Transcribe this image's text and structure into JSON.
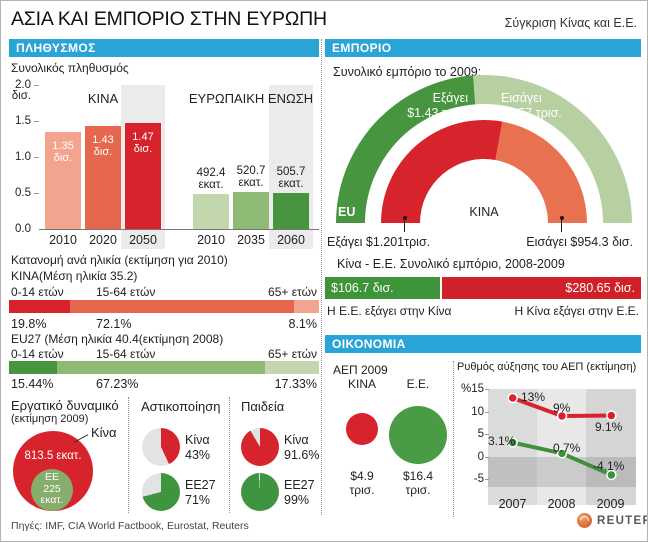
{
  "page": {
    "title": "ΑΣΙΑ ΚΑΙ ΕΜΠΟΡΙΟ ΣΤΗΝ ΕΥΡΩΠΗ",
    "subtitle": "Σύγκριση Κίνας και Ε.Ε.",
    "sources": "Πηγές: IMF, CIA World Factbook, Eurostat, Reuters",
    "brand": "REUTERS"
  },
  "sections": {
    "population": "ΠΛΗΘΥΣΜΟΣ",
    "trade": "ΕΜΠΟΡΙΟ",
    "economy": "ΟΙΚΟΝΟΜΙΑ"
  },
  "colors": {
    "header_blue": "#2aa3d6",
    "china_red": "#d7232b",
    "eu_green": "#47953e"
  },
  "chart_data": [
    {
      "id": "total-population",
      "type": "bar",
      "title": "Συνολικός πληθυσμός",
      "ylabel": "δισ.",
      "ylim": [
        0,
        2.0
      ],
      "ytick_labels": [
        "2.0",
        "1.5",
        "1.0",
        "0.5",
        "0.0"
      ],
      "unit_top": "δισ.",
      "groups": [
        {
          "name": "ΚΙΝΑ",
          "unit": "δισ.",
          "categories": [
            "2010",
            "2020",
            "2050"
          ],
          "values_billions": [
            1.35,
            1.43,
            1.47
          ],
          "value_labels": [
            "1.35",
            "1.43",
            "1.47"
          ],
          "colors": [
            "#f2a48e",
            "#e4674e",
            "#d7232b"
          ],
          "highlighted_category": "2050"
        },
        {
          "name": "ΕΥΡΩΠΑΙΚΗ ΕΝΩΣΗ",
          "unit": "εκατ.",
          "categories": [
            "2010",
            "2035",
            "2060"
          ],
          "values_billions": [
            0.4924,
            0.5207,
            0.5057
          ],
          "value_labels": [
            "492.4",
            "520.7",
            "505.7"
          ],
          "colors": [
            "#c2d8ac",
            "#8eba76",
            "#47953e"
          ],
          "highlighted_category": "2060"
        }
      ]
    },
    {
      "id": "age-distribution-china",
      "type": "bar",
      "subtype": "stacked-horizontal",
      "title": "Κατανομή ανά ηλικία (εκτίμηση για 2010)",
      "group_label": "ΚΙΝΑ(Μέση ηλικία 35.2)",
      "categories": [
        "0-14 ετών",
        "15-64 ετών",
        "65+ ετών"
      ],
      "values_percent": [
        19.8,
        72.1,
        8.1
      ],
      "value_labels": [
        "19.8%",
        "72.1%",
        "8.1%"
      ],
      "colors": [
        "#d7232b",
        "#e4674e",
        "#f2a48e"
      ]
    },
    {
      "id": "age-distribution-eu27",
      "type": "bar",
      "subtype": "stacked-horizontal",
      "group_label": "EU27 (Μέση ηλικία 40.4(εκτίμηση 2008)",
      "categories": [
        "0-14 ετών",
        "15-64 ετών",
        "65+ ετών"
      ],
      "values_percent": [
        15.44,
        67.23,
        17.33
      ],
      "value_labels": [
        "15.44%",
        "67.23%",
        "17.33%"
      ],
      "colors": [
        "#47953e",
        "#8eba76",
        "#c2d8ac"
      ]
    },
    {
      "id": "labor-force",
      "type": "bubble",
      "title": "Εργατικό δυναμικό",
      "subtitle": "(εκτίμηση 2009)",
      "callout": "Κίνα",
      "items": [
        {
          "name": "Κίνα",
          "label": "813.5 εκατ.",
          "value_millions": 813.5,
          "color": "#d7232b"
        },
        {
          "name": "ΕΕ",
          "label_lines": [
            "ΕΕ",
            "225",
            "εκατ."
          ],
          "value_millions": 225,
          "color": "#87ad6c"
        }
      ]
    },
    {
      "id": "urbanization",
      "type": "pie",
      "title": "Αστικοποίηση",
      "rest_color": "#e3e3e4",
      "pies": [
        {
          "name": "Κίνα",
          "percent": 43,
          "label": "43%",
          "color": "#d7232b"
        },
        {
          "name": "ΕΕ27",
          "percent": 71,
          "label": "71%",
          "color": "#3f9440"
        }
      ]
    },
    {
      "id": "education",
      "type": "pie",
      "title": "Παιδεία",
      "rest_color": "#e3e3e4",
      "pies": [
        {
          "name": "Κίνα",
          "percent": 91.6,
          "label": "91.6%",
          "color": "#d7232b"
        },
        {
          "name": "ΕΕ27",
          "percent": 99,
          "label": "99%",
          "color": "#3f9440"
        }
      ]
    },
    {
      "id": "total-trade-2009",
      "type": "pie",
      "subtype": "semicircle-donut",
      "title": "Συνολικό εμπόριο το 2009:",
      "rings": [
        {
          "name": "EU",
          "label": "EU",
          "segments": [
            {
              "name": "Εξάγει",
              "label_lines": [
                "Εξάγει",
                "$1.43 τρισ."
              ],
              "value_trillions": 1.43,
              "color": "#47953e"
            },
            {
              "name": "Εισάγει",
              "label_lines": [
                "Εισάγει",
                "$1.57 τρισ."
              ],
              "value_trillions": 1.57,
              "color": "#b7d0a2"
            }
          ]
        },
        {
          "name": "ΚΙΝΑ",
          "label": "ΚΙΝΑ",
          "segments": [
            {
              "name": "Εξάγει",
              "label": "Εξάγει $1.201τρισ.",
              "value_trillions": 1.201,
              "color": "#d7232b"
            },
            {
              "name": "Εισάγει",
              "label": "Εισάγει $954.3 δισ.",
              "value_trillions": 0.9543,
              "color": "#e8714f"
            }
          ]
        }
      ]
    },
    {
      "id": "bilateral-trade",
      "type": "bar",
      "subtype": "proportional-horizontal",
      "title": "Κίνα - Ε.Ε.  Συνολικό εμπόριο, 2008-2009",
      "segments": [
        {
          "label": "$106.7 δισ.",
          "caption": "Η Ε.Ε. εξάγει στην Κίνα",
          "value_billions": 106.7,
          "color": "#3e9539"
        },
        {
          "label": "$280.65 δισ.",
          "caption": "Η Κίνα εξάγει στην Ε.Ε.",
          "value_billions": 280.65,
          "color": "#cf2127"
        }
      ]
    },
    {
      "id": "gdp-2009",
      "type": "bubble",
      "title": "ΑΕΠ 2009",
      "items": [
        {
          "name": "ΚΙΝΑ",
          "label_lines": [
            "$4.9",
            "τρισ."
          ],
          "value_trillions": 4.9,
          "color": "#d7232b"
        },
        {
          "name": "Ε.Ε.",
          "label_lines": [
            "$16.4",
            "τρισ."
          ],
          "value_trillions": 16.4,
          "color": "#4a9b45"
        }
      ]
    },
    {
      "id": "gdp-growth",
      "type": "line",
      "title": "Ρυθμός αύξησης του ΑΕΠ (εκτίμηση)",
      "x": [
        "2007",
        "2008",
        "2009"
      ],
      "yticks": [
        15,
        10,
        5,
        0,
        -5
      ],
      "ytick_labels": [
        "%15",
        "10",
        "5",
        "0",
        "-5"
      ],
      "series": [
        {
          "name": "Κίνα",
          "values": [
            13,
            9,
            9.1
          ],
          "labels": [
            "13%",
            "9%",
            "9.1%"
          ],
          "color": "#d7232b"
        },
        {
          "name": "Ε.Ε.",
          "values": [
            3.1,
            0.7,
            -4.1
          ],
          "labels": [
            "3.1%",
            "0.7%",
            "-4.1%"
          ],
          "color": "#3f8f3d"
        }
      ]
    }
  ]
}
